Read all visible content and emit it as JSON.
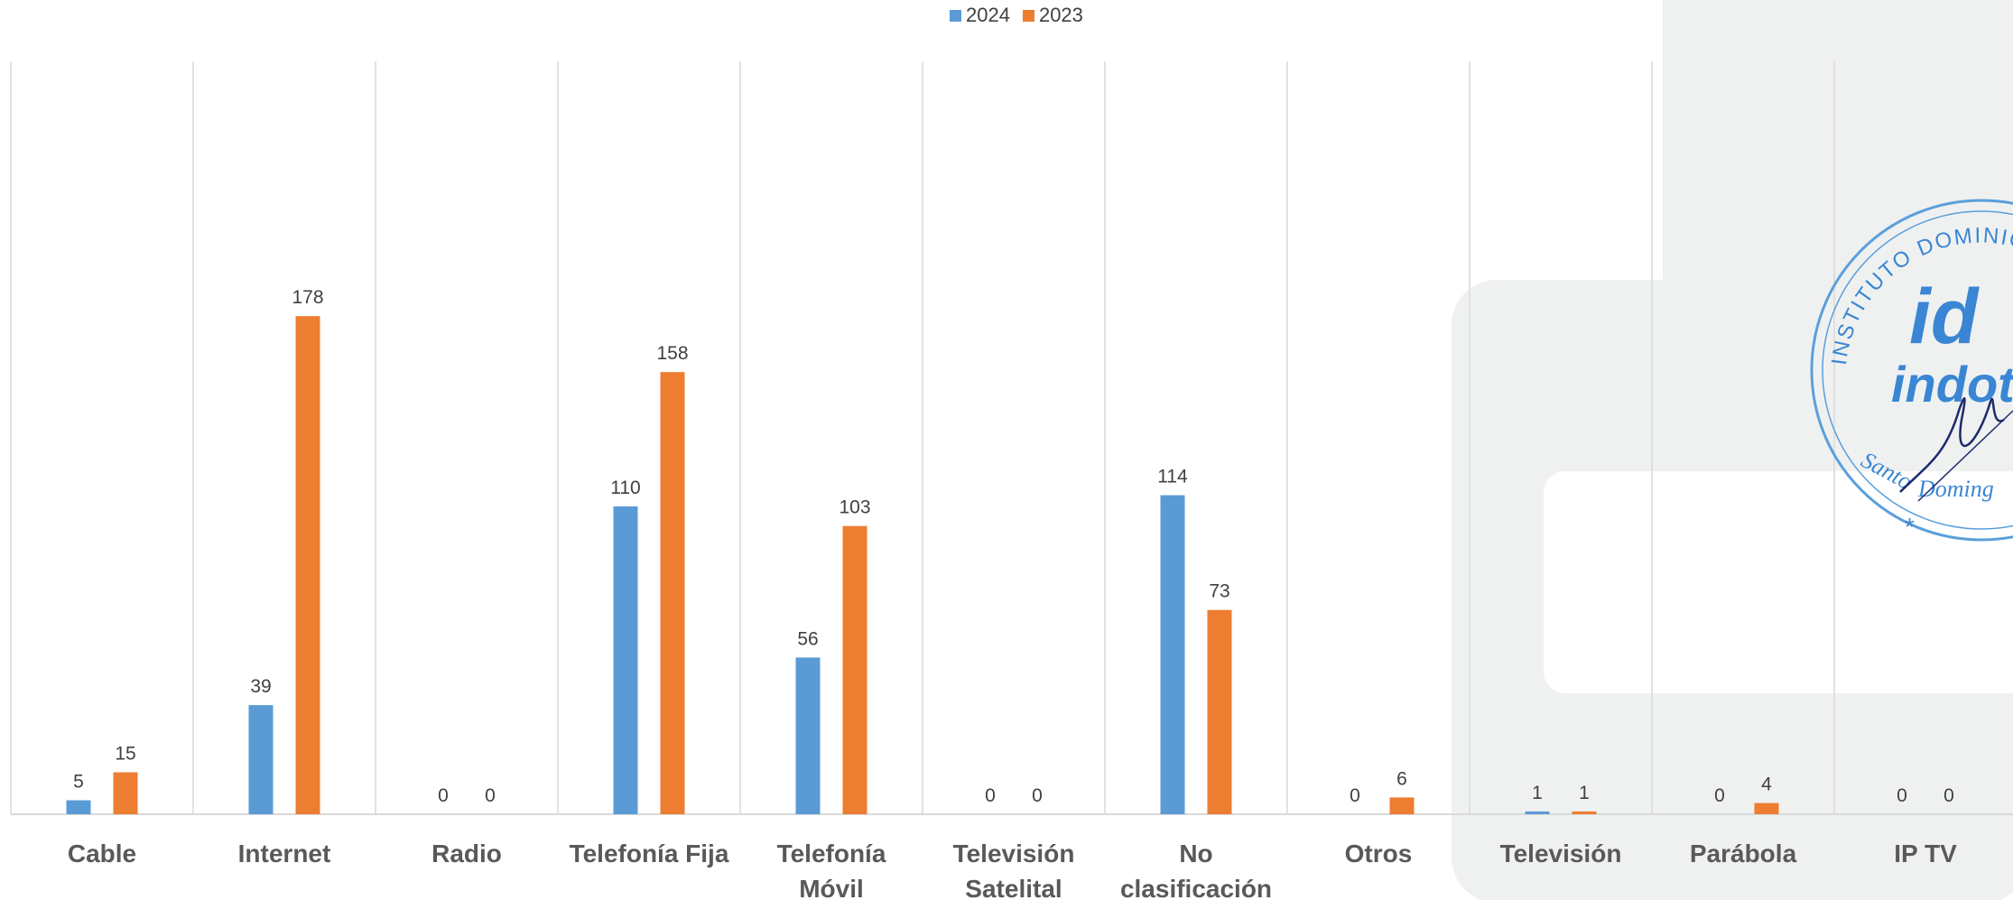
{
  "chart_data": {
    "type": "bar",
    "categories": [
      "Cable",
      "Internet",
      "Radio",
      "Telefonía Fija",
      "Telefonía Móvil",
      "Televisión Satelital",
      "No clasificación",
      "Otros",
      "Televisión",
      "Parábola",
      "IP TV"
    ],
    "category_lines": [
      [
        "Cable"
      ],
      [
        "Internet"
      ],
      [
        "Radio"
      ],
      [
        "Telefonía Fija"
      ],
      [
        "Telefonía",
        "Móvil"
      ],
      [
        "Televisión",
        "Satelital"
      ],
      [
        "No",
        "clasificación"
      ],
      [
        "Otros"
      ],
      [
        "Televisión"
      ],
      [
        "Parábola"
      ],
      [
        "IP TV"
      ]
    ],
    "series": [
      {
        "name": "2024",
        "color": "#5b9bd5",
        "values": [
          5,
          39,
          0,
          110,
          56,
          0,
          114,
          0,
          1,
          0,
          0
        ]
      },
      {
        "name": "2023",
        "color": "#ed7d31",
        "values": [
          15,
          178,
          0,
          158,
          103,
          0,
          73,
          6,
          1,
          4,
          0
        ]
      }
    ],
    "ylim": [
      0,
      200
    ],
    "grid": "vertical category separators",
    "legend": "top-center",
    "data_labels": true
  },
  "seal": {
    "text": "INSTITUTO DOMINICANO DE LAS TELECOMUNICACIONES",
    "logo": "id indotel",
    "city": "Santo Domingo",
    "color": "#3a86d4"
  }
}
